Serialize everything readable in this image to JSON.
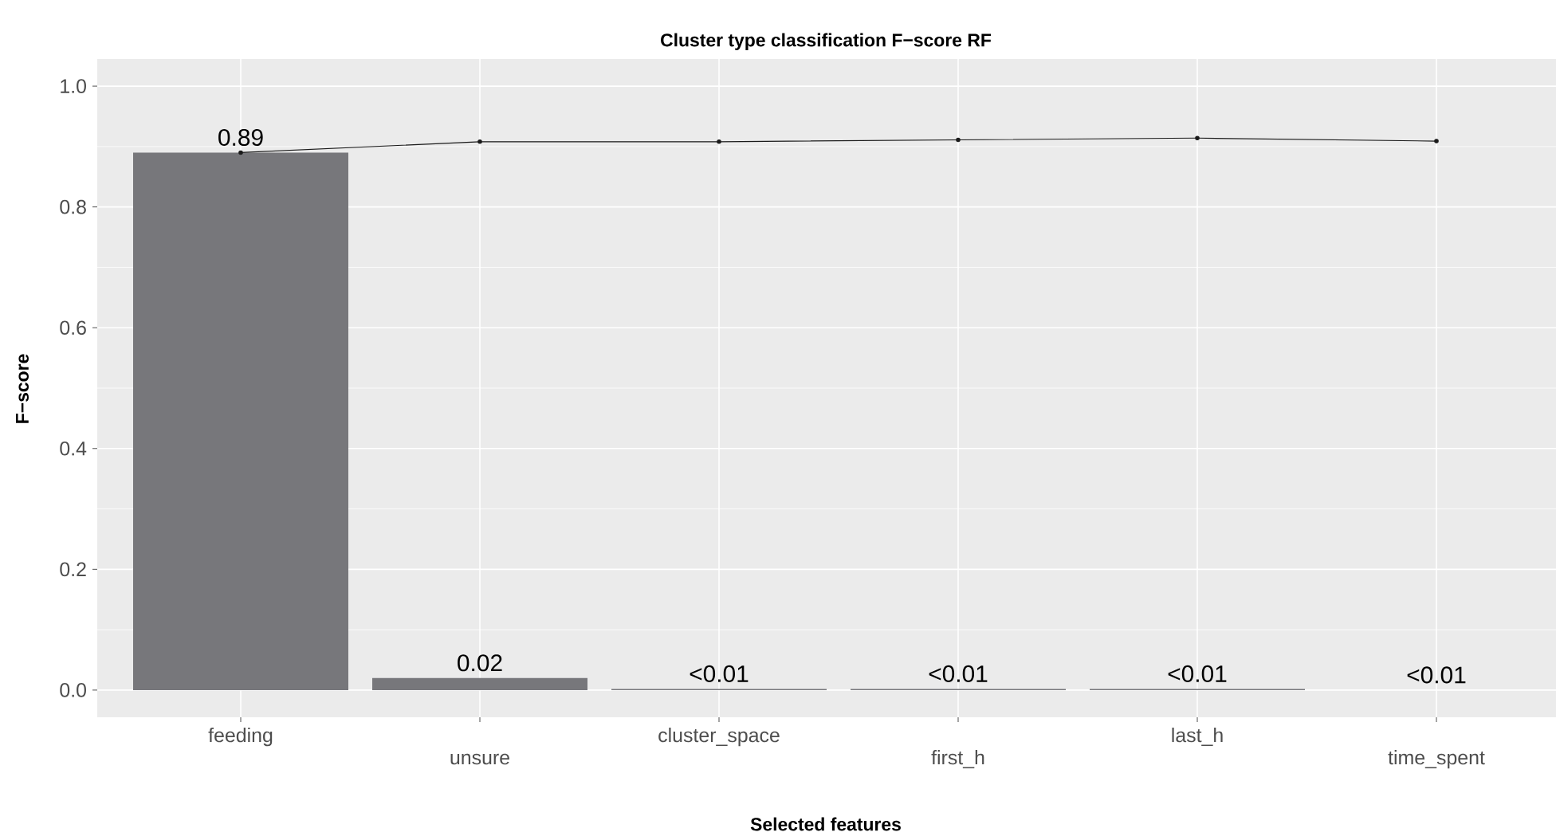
{
  "chart_data": {
    "type": "bar",
    "title": "Cluster type classification F−score RF",
    "xlabel": "Selected features",
    "ylabel": "F−score",
    "categories": [
      "feeding",
      "unsure",
      "cluster_space",
      "first_h",
      "last_h",
      "time_spent"
    ],
    "series": [
      {
        "color": "#77777b",
        "values": [
          0.89,
          0.02,
          0.002,
          0.002,
          0.002,
          0
        ],
        "value_labels": [
          "0.89",
          "0.02",
          "<0.01",
          "<0.01",
          "<0.01",
          "<0.01"
        ]
      },
      {
        "type": "line",
        "color": "#1a1a1a",
        "marker": "circle",
        "values": [
          0.89,
          0.908,
          0.908,
          0.911,
          0.914,
          0.909
        ]
      }
    ],
    "ylim": [
      -0.045,
      1.045
    ],
    "yticks": [
      {
        "value": 0,
        "label": "0.0"
      },
      0.2,
      0.4,
      0.6,
      0.8,
      {
        "value": 1,
        "label": "1.0"
      }
    ],
    "grid": true
  }
}
